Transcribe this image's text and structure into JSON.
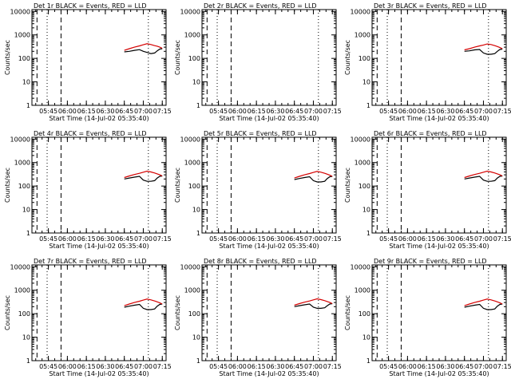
{
  "figure": {
    "x_axis_label": "Start Time (14-Jul-02 05:35:40)",
    "y_axis_label": "Counts/sec"
  },
  "colors": {
    "events": "#000000",
    "lld": "#d40000",
    "background": "#ffffff"
  },
  "chart_data": [
    {
      "type": "line",
      "title": "Det 1r BLACK = Events, RED = LLD",
      "xlabel": "Start Time (14-Jul-02 05:35:40)",
      "ylabel": "Counts/sec",
      "yscale": "log",
      "ylim": [
        1,
        12000
      ],
      "xlim_minutes": [
        -3,
        103
      ],
      "x_ticks": [
        "05:45",
        "06:00",
        "06:15",
        "06:30",
        "06:45",
        "07:00",
        "07:15"
      ],
      "y_ticks": [
        "1",
        "10",
        "100",
        "1000",
        "10000"
      ],
      "series": [
        {
          "name": "Events",
          "x": [
            70,
            74,
            78,
            82,
            85,
            88,
            91,
            94,
            96,
            98,
            100
          ],
          "y": [
            190,
            200,
            220,
            235,
            200,
            180,
            160,
            170,
            210,
            250,
            260
          ]
        },
        {
          "name": "LLD",
          "x": [
            70,
            74,
            78,
            82,
            85,
            88,
            91,
            94,
            96,
            98,
            100
          ],
          "y": [
            220,
            260,
            300,
            340,
            380,
            420,
            390,
            350,
            330,
            300,
            270
          ]
        }
      ],
      "vlines": [
        {
          "x": 1,
          "style": "dashed"
        },
        {
          "x": 9,
          "style": "dotted"
        },
        {
          "x": 20,
          "style": "dashed"
        },
        {
          "x": 89,
          "style": "dotted"
        }
      ]
    },
    {
      "type": "line",
      "title": "Det 2r BLACK = Events, RED = LLD",
      "xlabel": "Start Time (14-Jul-02 05:35:40)",
      "ylabel": "Counts/sec",
      "yscale": "log",
      "ylim": [
        1,
        12000
      ],
      "xlim_minutes": [
        -3,
        103
      ],
      "x_ticks": [
        "05:45",
        "06:00",
        "06:15",
        "06:30",
        "06:45",
        "07:00",
        "07:15"
      ],
      "y_ticks": [
        "1",
        "10",
        "100",
        "1000",
        "10000"
      ],
      "series": [
        {
          "name": "Events",
          "x": [],
          "y": []
        },
        {
          "name": "LLD",
          "x": [],
          "y": []
        }
      ],
      "vlines": [
        {
          "x": 1,
          "style": "dashed"
        },
        {
          "x": 9,
          "style": "dotted"
        },
        {
          "x": 20,
          "style": "dashed"
        },
        {
          "x": 89,
          "style": "dotted"
        }
      ]
    },
    {
      "type": "line",
      "title": "Det 3r BLACK = Events, RED = LLD",
      "xlabel": "Start Time (14-Jul-02 05:35:40)",
      "ylabel": "Counts/sec",
      "yscale": "log",
      "ylim": [
        1,
        12000
      ],
      "xlim_minutes": [
        -3,
        103
      ],
      "x_ticks": [
        "05:45",
        "06:00",
        "06:15",
        "06:30",
        "06:45",
        "07:00",
        "07:15"
      ],
      "y_ticks": [
        "1",
        "10",
        "100",
        "1000",
        "10000"
      ],
      "series": [
        {
          "name": "Events",
          "x": [
            70,
            74,
            78,
            82,
            85,
            88,
            91,
            94,
            96,
            98,
            100
          ],
          "y": [
            200,
            210,
            230,
            240,
            170,
            150,
            150,
            160,
            200,
            240,
            250
          ]
        },
        {
          "name": "LLD",
          "x": [
            70,
            74,
            78,
            82,
            85,
            88,
            91,
            94,
            96,
            98,
            100
          ],
          "y": [
            230,
            260,
            300,
            340,
            370,
            410,
            390,
            350,
            320,
            290,
            260
          ]
        }
      ],
      "vlines": [
        {
          "x": 1,
          "style": "dashed"
        },
        {
          "x": 9,
          "style": "dotted"
        },
        {
          "x": 20,
          "style": "dashed"
        },
        {
          "x": 89,
          "style": "dotted"
        }
      ]
    },
    {
      "type": "line",
      "title": "Det 4r BLACK = Events, RED = LLD",
      "xlabel": "Start Time (14-Jul-02 05:35:40)",
      "ylabel": "Counts/sec",
      "yscale": "log",
      "ylim": [
        1,
        12000
      ],
      "xlim_minutes": [
        -3,
        103
      ],
      "x_ticks": [
        "05:45",
        "06:00",
        "06:15",
        "06:30",
        "06:45",
        "07:00",
        "07:15"
      ],
      "y_ticks": [
        "1",
        "10",
        "100",
        "1000",
        "10000"
      ],
      "series": [
        {
          "name": "Events",
          "x": [
            70,
            74,
            78,
            82,
            85,
            88,
            91,
            94,
            96,
            98,
            100
          ],
          "y": [
            200,
            220,
            240,
            260,
            180,
            160,
            160,
            170,
            220,
            260,
            270
          ]
        },
        {
          "name": "LLD",
          "x": [
            70,
            74,
            78,
            82,
            85,
            88,
            91,
            94,
            96,
            98,
            100
          ],
          "y": [
            230,
            270,
            310,
            350,
            390,
            430,
            400,
            360,
            330,
            300,
            270
          ]
        }
      ],
      "vlines": [
        {
          "x": 1,
          "style": "dashed"
        },
        {
          "x": 9,
          "style": "dotted"
        },
        {
          "x": 20,
          "style": "dashed"
        },
        {
          "x": 89,
          "style": "dotted"
        }
      ]
    },
    {
      "type": "line",
      "title": "Det 5r BLACK = Events, RED = LLD",
      "xlabel": "Start Time (14-Jul-02 05:35:40)",
      "ylabel": "Counts/sec",
      "yscale": "log",
      "ylim": [
        1,
        12000
      ],
      "xlim_minutes": [
        -3,
        103
      ],
      "x_ticks": [
        "05:45",
        "06:00",
        "06:15",
        "06:30",
        "06:45",
        "07:00",
        "07:15"
      ],
      "y_ticks": [
        "1",
        "10",
        "100",
        "1000",
        "10000"
      ],
      "series": [
        {
          "name": "Events",
          "x": [
            70,
            74,
            78,
            82,
            85,
            88,
            91,
            94,
            96,
            98,
            100
          ],
          "y": [
            190,
            210,
            230,
            250,
            170,
            150,
            150,
            160,
            210,
            250,
            260
          ]
        },
        {
          "name": "LLD",
          "x": [
            70,
            74,
            78,
            82,
            85,
            88,
            91,
            94,
            96,
            98,
            100
          ],
          "y": [
            220,
            260,
            300,
            340,
            380,
            420,
            390,
            350,
            320,
            290,
            260
          ]
        }
      ],
      "vlines": [
        {
          "x": 1,
          "style": "dashed"
        },
        {
          "x": 9,
          "style": "dotted"
        },
        {
          "x": 20,
          "style": "dashed"
        },
        {
          "x": 89,
          "style": "dotted"
        }
      ]
    },
    {
      "type": "line",
      "title": "Det 6r BLACK = Events, RED = LLD",
      "xlabel": "Start Time (14-Jul-02 05:35:40)",
      "ylabel": "Counts/sec",
      "yscale": "log",
      "ylim": [
        1,
        12000
      ],
      "xlim_minutes": [
        -3,
        103
      ],
      "x_ticks": [
        "05:45",
        "06:00",
        "06:15",
        "06:30",
        "06:45",
        "07:00",
        "07:15"
      ],
      "y_ticks": [
        "1",
        "10",
        "100",
        "1000",
        "10000"
      ],
      "series": [
        {
          "name": "Events",
          "x": [
            70,
            74,
            78,
            82,
            85,
            88,
            91,
            94,
            96,
            98,
            100
          ],
          "y": [
            200,
            220,
            240,
            260,
            180,
            160,
            160,
            170,
            220,
            260,
            270
          ]
        },
        {
          "name": "LLD",
          "x": [
            70,
            74,
            78,
            82,
            85,
            88,
            91,
            94,
            96,
            98,
            100
          ],
          "y": [
            230,
            270,
            310,
            350,
            390,
            430,
            400,
            360,
            330,
            300,
            270
          ]
        }
      ],
      "vlines": [
        {
          "x": 1,
          "style": "dashed"
        },
        {
          "x": 9,
          "style": "dotted"
        },
        {
          "x": 20,
          "style": "dashed"
        },
        {
          "x": 89,
          "style": "dotted"
        }
      ]
    },
    {
      "type": "line",
      "title": "Det 7r BLACK = Events, RED = LLD",
      "xlabel": "Start Time (14-Jul-02 05:35:40)",
      "ylabel": "Counts/sec",
      "yscale": "log",
      "ylim": [
        1,
        12000
      ],
      "xlim_minutes": [
        -3,
        103
      ],
      "x_ticks": [
        "05:45",
        "06:00",
        "06:15",
        "06:30",
        "06:45",
        "07:00",
        "07:15"
      ],
      "y_ticks": [
        "1",
        "10",
        "100",
        "1000",
        "10000"
      ],
      "series": [
        {
          "name": "Events",
          "x": [
            70,
            74,
            78,
            82,
            85,
            88,
            91,
            94,
            96,
            98,
            100
          ],
          "y": [
            190,
            210,
            230,
            250,
            170,
            150,
            150,
            160,
            210,
            250,
            260
          ]
        },
        {
          "name": "LLD",
          "x": [
            70,
            74,
            78,
            82,
            85,
            88,
            91,
            94,
            96,
            98,
            100
          ],
          "y": [
            220,
            260,
            300,
            340,
            380,
            420,
            390,
            350,
            320,
            290,
            260
          ]
        }
      ],
      "vlines": [
        {
          "x": 1,
          "style": "dashed"
        },
        {
          "x": 9,
          "style": "dotted"
        },
        {
          "x": 20,
          "style": "dashed"
        },
        {
          "x": 89,
          "style": "dotted"
        }
      ]
    },
    {
      "type": "line",
      "title": "Det 8r BLACK = Events, RED = LLD",
      "xlabel": "Start Time (14-Jul-02 05:35:40)",
      "ylabel": "Counts/sec",
      "yscale": "log",
      "ylim": [
        1,
        12000
      ],
      "xlim_minutes": [
        -3,
        103
      ],
      "x_ticks": [
        "05:45",
        "06:00",
        "06:15",
        "06:30",
        "06:45",
        "07:00",
        "07:15"
      ],
      "y_ticks": [
        "1",
        "10",
        "100",
        "1000",
        "10000"
      ],
      "series": [
        {
          "name": "Events",
          "x": [
            70,
            74,
            78,
            82,
            85,
            88,
            91,
            94,
            96,
            98,
            100
          ],
          "y": [
            200,
            220,
            240,
            260,
            190,
            170,
            170,
            180,
            220,
            260,
            270
          ]
        },
        {
          "name": "LLD",
          "x": [
            70,
            74,
            78,
            82,
            85,
            88,
            91,
            94,
            96,
            98,
            100
          ],
          "y": [
            230,
            270,
            310,
            350,
            390,
            430,
            400,
            360,
            330,
            300,
            270
          ]
        }
      ],
      "vlines": [
        {
          "x": 1,
          "style": "dashed"
        },
        {
          "x": 9,
          "style": "dotted"
        },
        {
          "x": 20,
          "style": "dashed"
        },
        {
          "x": 89,
          "style": "dotted"
        }
      ]
    },
    {
      "type": "line",
      "title": "Det 9r BLACK = Events, RED = LLD",
      "xlabel": "Start Time (14-Jul-02 05:35:40)",
      "ylabel": "Counts/sec",
      "yscale": "log",
      "ylim": [
        1,
        12000
      ],
      "xlim_minutes": [
        -3,
        103
      ],
      "x_ticks": [
        "05:45",
        "06:00",
        "06:15",
        "06:30",
        "06:45",
        "07:00",
        "07:15"
      ],
      "y_ticks": [
        "1",
        "10",
        "100",
        "1000",
        "10000"
      ],
      "series": [
        {
          "name": "Events",
          "x": [
            70,
            74,
            78,
            82,
            85,
            88,
            91,
            94,
            96,
            98,
            100
          ],
          "y": [
            190,
            210,
            230,
            250,
            170,
            150,
            150,
            160,
            210,
            250,
            260
          ]
        },
        {
          "name": "LLD",
          "x": [
            70,
            74,
            78,
            82,
            85,
            88,
            91,
            94,
            96,
            98,
            100
          ],
          "y": [
            220,
            260,
            300,
            340,
            380,
            420,
            390,
            350,
            320,
            290,
            260
          ]
        }
      ],
      "vlines": [
        {
          "x": 1,
          "style": "dashed"
        },
        {
          "x": 9,
          "style": "dotted"
        },
        {
          "x": 20,
          "style": "dashed"
        },
        {
          "x": 89,
          "style": "dotted"
        }
      ]
    }
  ]
}
